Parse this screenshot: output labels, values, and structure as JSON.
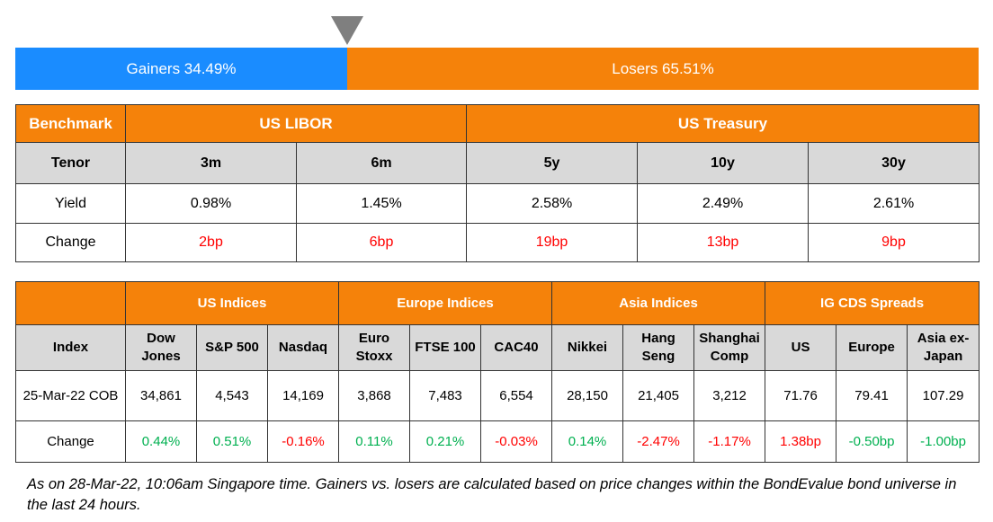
{
  "sentiment": {
    "gainers": "Gainers 34.49%",
    "losers": "Losers 65.51%"
  },
  "table1": {
    "header": [
      "Benchmark",
      "US LIBOR",
      "US Treasury"
    ],
    "tenor": [
      "Tenor",
      "3m",
      "6m",
      "5y",
      "10y",
      "30y"
    ],
    "yield": [
      "Yield",
      "0.98%",
      "1.45%",
      "2.58%",
      "2.49%",
      "2.61%"
    ],
    "change": [
      "Change",
      "2bp",
      "6bp",
      "19bp",
      "13bp",
      "9bp"
    ],
    "change_color": "#ff0000"
  },
  "table2": {
    "header": [
      "US Indices",
      "Europe Indices",
      "Asia Indices",
      "IG CDS Spreads"
    ],
    "index": [
      "Index",
      "Dow Jones",
      "S&P 500",
      "Nasdaq",
      "Euro Stoxx",
      "FTSE 100",
      "CAC40",
      "Nikkei",
      "Hang Seng",
      "Shanghai Comp",
      "US",
      "Europe",
      "Asia ex-Japan"
    ],
    "values": [
      "25-Mar-22 COB",
      "34,861",
      "4,543",
      "14,169",
      "3,868",
      "7,483",
      "6,554",
      "28,150",
      "21,405",
      "3,212",
      "71.76",
      "79.41",
      "107.29"
    ],
    "change": [
      "Change",
      "0.44%",
      "0.51%",
      "-0.16%",
      "0.11%",
      "0.21%",
      "-0.03%",
      "0.14%",
      "-2.47%",
      "-1.17%",
      "1.38bp",
      "-0.50bp",
      "-1.00bp"
    ],
    "change_colors": [
      "#000000",
      "#00b050",
      "#00b050",
      "#ff0000",
      "#00b050",
      "#00b050",
      "#ff0000",
      "#00b050",
      "#ff0000",
      "#ff0000",
      "#ff0000",
      "#00b050",
      "#00b050"
    ]
  },
  "footnote": "As on 28-Mar-22, 10:06am Singapore time. Gainers vs. losers are calculated based on price changes within the BondEvalue bond universe in the last 24 hours."
}
